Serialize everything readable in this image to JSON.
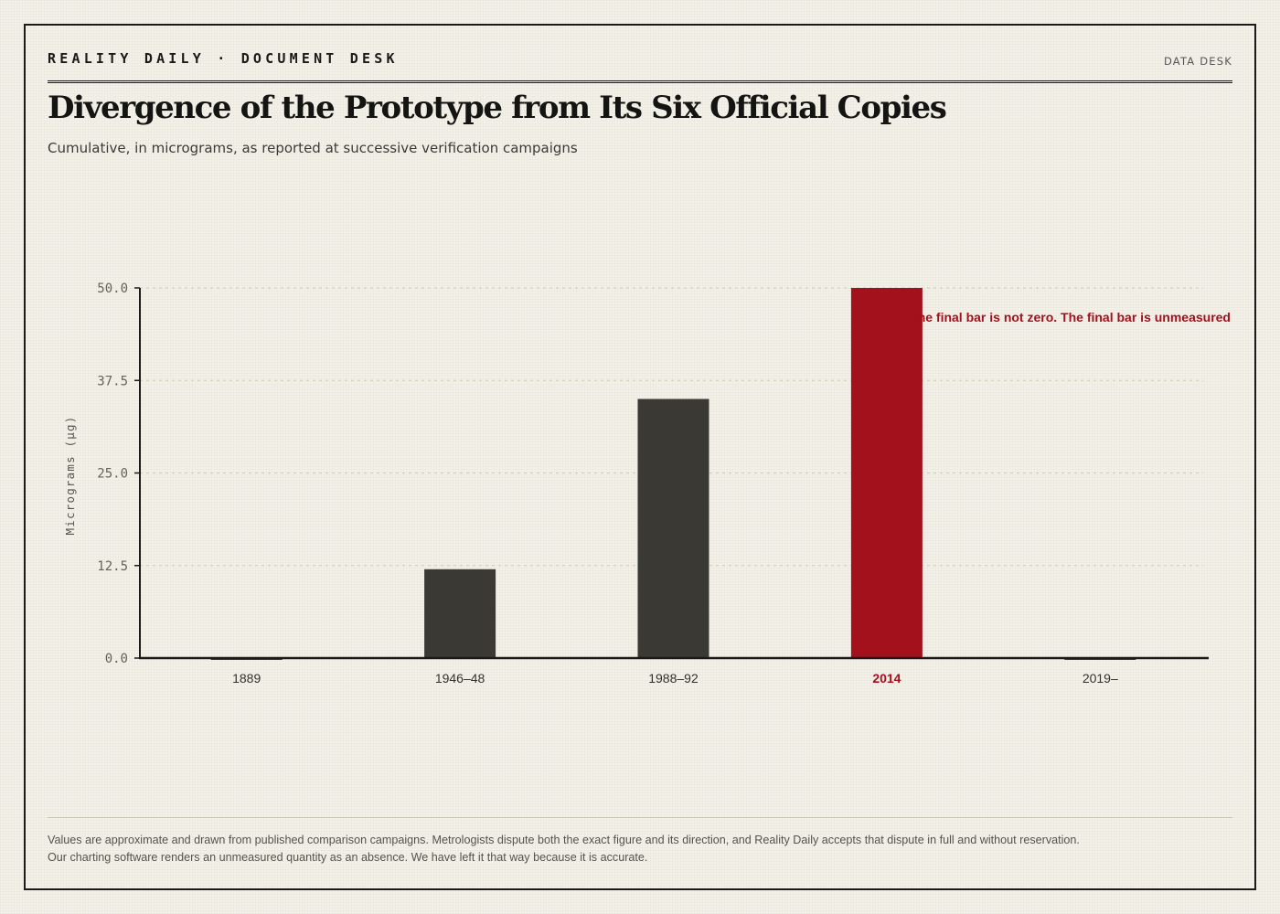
{
  "header": {
    "publication": "REALITY DAILY · DOCUMENT DESK",
    "desk": "DATA DESK"
  },
  "headline": "Divergence of the Prototype from Its Six Official Copies",
  "subtitle": "Cumulative, in micrograms, as reported at successive verification campaigns",
  "footnote": {
    "line1": "Values are approximate and drawn from published comparison campaigns. Metrologists dispute both the exact figure and its direction, and Reality Daily accepts that dispute in full and without reservation.",
    "line2": "Our charting software renders an unmeasured quantity as an absence. We have left it that way because it is accurate."
  },
  "colors": {
    "bar": "#3b3933",
    "highlight": "#a3111c",
    "axis": "#1a1a18",
    "grid": "#cfcab0",
    "tick_text": "#66635a"
  },
  "chart_data": {
    "type": "bar",
    "categories": [
      "1889",
      "1946–48",
      "1988–92",
      "2014",
      "2019–"
    ],
    "values": [
      0,
      12,
      35,
      50,
      null
    ],
    "highlight_index": 3,
    "ylabel": "Micrograms (µg)",
    "xlabel": "",
    "ylim": [
      0,
      50
    ],
    "yticks": [
      "0.0",
      "12.5",
      "25.0",
      "37.5",
      "50.0"
    ],
    "grid": true,
    "annotation": "The final bar is not zero. The final bar is unmeasured"
  }
}
